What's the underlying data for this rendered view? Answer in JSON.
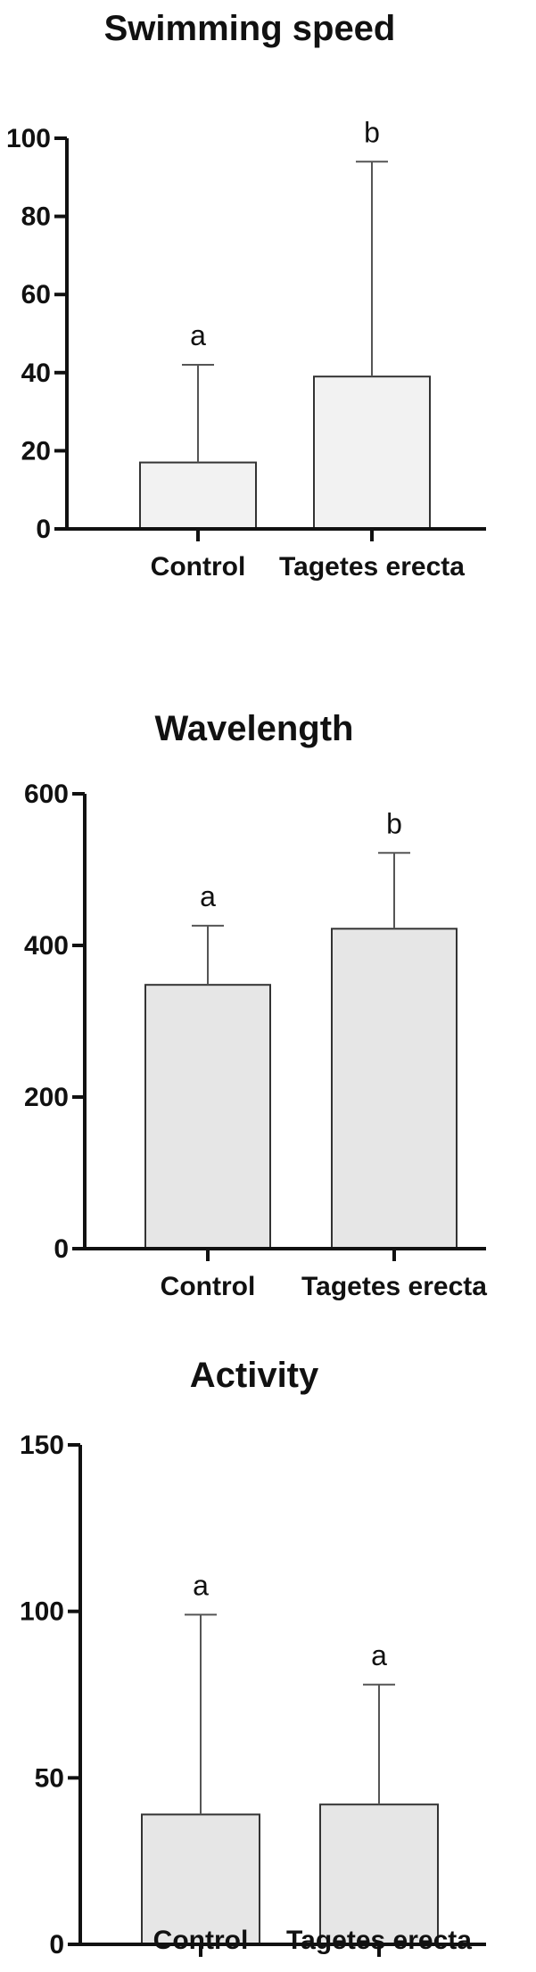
{
  "chart_data": [
    {
      "type": "bar",
      "title": "Swimming speed",
      "categories": [
        "Control",
        "Tagetes erecta"
      ],
      "values": [
        17,
        39
      ],
      "error_upper": [
        42,
        94
      ],
      "significance": [
        "a",
        "b"
      ],
      "ylim": [
        0,
        100
      ],
      "yticks": [
        0,
        20,
        40,
        60,
        80,
        100
      ],
      "bar_color": "#f2f2f2",
      "grid": false
    },
    {
      "type": "bar",
      "title": "Wavelength",
      "categories": [
        "Control",
        "Tagetes erecta"
      ],
      "values": [
        348,
        422
      ],
      "error_upper": [
        426,
        522
      ],
      "significance": [
        "a",
        "b"
      ],
      "ylim": [
        0,
        600
      ],
      "yticks": [
        0,
        200,
        400,
        600
      ],
      "bar_color": "#e6e6e6",
      "grid": false
    },
    {
      "type": "bar",
      "title": "Activity",
      "categories": [
        "Control",
        "Tagetes erecta"
      ],
      "values": [
        39,
        42
      ],
      "error_upper": [
        99,
        78
      ],
      "significance": [
        "a",
        "a"
      ],
      "ylim": [
        0,
        150
      ],
      "yticks": [
        0,
        50,
        100,
        150
      ],
      "bar_color": "#e6e6e6",
      "grid": false
    }
  ]
}
